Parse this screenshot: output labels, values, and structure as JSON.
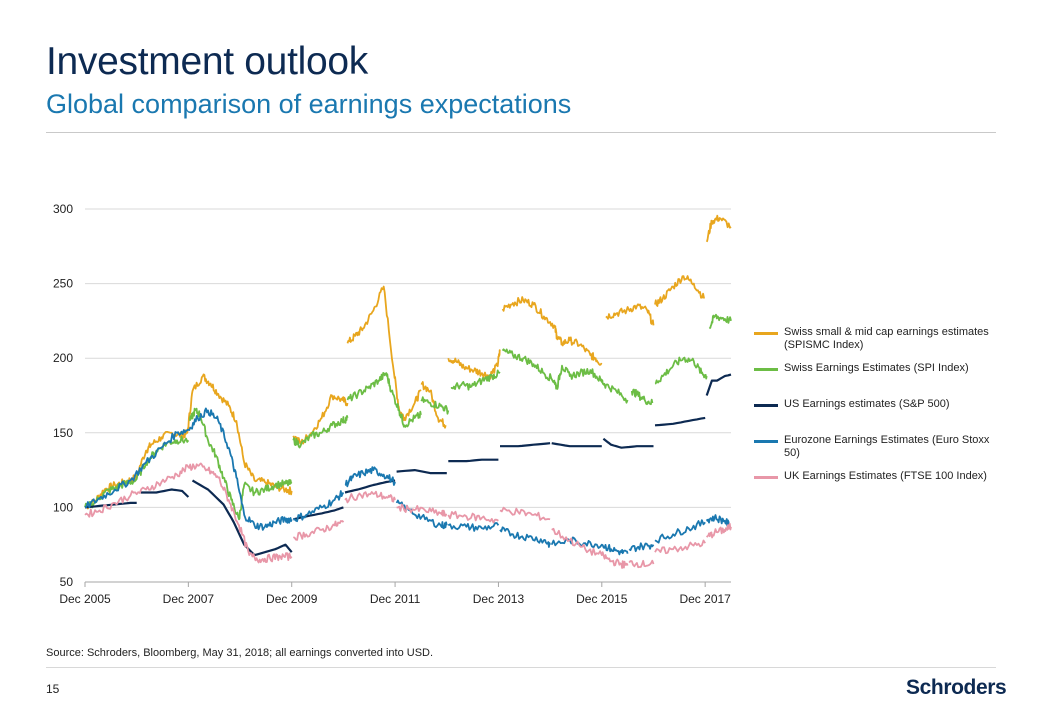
{
  "header": {
    "title": "Investment outlook",
    "subtitle": "Global comparison of earnings expectations"
  },
  "footer": {
    "source": "Source: Schroders, Bloomberg, May 31, 2018; all earnings converted into USD.",
    "page_number": "15",
    "brand": "Schroders"
  },
  "chart_data": {
    "type": "line",
    "title": "",
    "xlabel": "",
    "ylabel": "",
    "x_ticks": [
      "Dec 2005",
      "Dec 2007",
      "Dec 2009",
      "Dec 2011",
      "Dec 2013",
      "Dec 2015",
      "Dec 2017"
    ],
    "x_tick_values": [
      2005.92,
      2007.92,
      2009.92,
      2011.92,
      2013.92,
      2015.92,
      2017.92
    ],
    "xlim": [
      2005.92,
      2018.42
    ],
    "y_ticks": [
      "50",
      "100",
      "150",
      "200",
      "250",
      "300"
    ],
    "y_tick_values": [
      50,
      100,
      150,
      200,
      250,
      300
    ],
    "ylim": [
      50,
      300
    ],
    "grid": "horizontal",
    "legend_position": "right",
    "series": [
      {
        "name": "Swiss small & mid cap earnings estimates (SPISMC Index)",
        "color": "#e8a61e",
        "x": [
          2005.92,
          2006.1,
          2006.3,
          2006.5,
          2006.7,
          2006.9,
          2007.1,
          2007.2,
          2007.4,
          2007.6,
          2007.8,
          2007.9,
          2008.0,
          2008.2,
          2008.35,
          2008.5,
          2008.7,
          2008.85,
          2009.0,
          2009.2,
          2009.4,
          2009.6,
          2009.8,
          2009.92,
          null,
          2009.95,
          2010.1,
          2010.3,
          2010.5,
          2010.7,
          2010.9,
          2011.0,
          null,
          2011.0,
          2011.15,
          2011.3,
          2011.5,
          2011.7,
          2011.9,
          2012.0,
          2012.1,
          2012.3,
          2012.42,
          null,
          2012.42,
          2012.6,
          2012.75,
          2012.9,
          null,
          2012.95,
          2013.1,
          2013.25,
          2013.45,
          2013.6,
          2013.75,
          2013.9,
          2013.95,
          null,
          2014.0,
          2014.2,
          2014.4,
          2014.6,
          2014.8,
          2015.0,
          2015.05,
          2015.15,
          2015.3,
          2015.5,
          2015.7,
          2015.8,
          2015.92,
          null,
          2016.0,
          2016.2,
          2016.4,
          2016.6,
          2016.8,
          2016.92,
          null,
          2016.95,
          2017.1,
          2017.3,
          2017.5,
          2017.7,
          2017.9,
          null,
          2017.95,
          2018.05,
          2018.2,
          2018.42
        ],
        "values": [
          100,
          104,
          112,
          115,
          117,
          120,
          138,
          142,
          147,
          150,
          148,
          150,
          178,
          188,
          183,
          176,
          168,
          158,
          130,
          118,
          117,
          114,
          112,
          111,
          null,
          148,
          143,
          150,
          160,
          175,
          172,
          170,
          null,
          210,
          215,
          220,
          232,
          248,
          190,
          165,
          160,
          170,
          178,
          null,
          183,
          178,
          160,
          155,
          null,
          200,
          198,
          194,
          192,
          190,
          188,
          195,
          205,
          null,
          233,
          237,
          239,
          236,
          228,
          222,
          215,
          210,
          212,
          209,
          202,
          200,
          196,
          null,
          228,
          230,
          232,
          235,
          232,
          222,
          null,
          236,
          240,
          248,
          255,
          250,
          240,
          null,
          278,
          292,
          294,
          288
        ]
      },
      {
        "name": "Swiss Earnings Estimates (SPI Index)",
        "color": "#6cbd45",
        "x": [
          2005.92,
          2006.1,
          2006.3,
          2006.5,
          2006.7,
          2006.9,
          2007.1,
          2007.3,
          2007.5,
          2007.7,
          2007.92,
          null,
          2007.95,
          2008.05,
          2008.15,
          2008.3,
          2008.45,
          2008.6,
          2008.75,
          2008.9,
          2009.0,
          2009.2,
          2009.4,
          2009.6,
          2009.8,
          2009.92,
          null,
          2009.95,
          2010.1,
          2010.3,
          2010.5,
          2010.7,
          2010.9,
          2011.0,
          null,
          2011.0,
          2011.2,
          2011.4,
          2011.6,
          2011.75,
          2011.85,
          2012.0,
          2012.1,
          2012.3,
          2012.42,
          null,
          2012.42,
          2012.6,
          2012.8,
          2012.95,
          null,
          2013.0,
          2013.2,
          2013.4,
          2013.6,
          2013.8,
          2013.95,
          null,
          2014.0,
          2014.2,
          2014.4,
          2014.6,
          2014.8,
          2015.0,
          2015.05,
          2015.15,
          2015.3,
          2015.5,
          2015.7,
          2015.9,
          2016.0,
          2016.2,
          2016.42,
          null,
          2016.5,
          2016.6,
          2016.75,
          2016.9,
          null,
          2016.95,
          2017.1,
          2017.3,
          2017.5,
          2017.7,
          2017.85,
          2017.95,
          null,
          2018.0,
          2018.1,
          2018.25,
          2018.42
        ],
        "values": [
          100,
          103,
          110,
          113,
          116,
          118,
          130,
          138,
          143,
          145,
          145,
          null,
          158,
          165,
          162,
          145,
          135,
          120,
          105,
          92,
          115,
          110,
          112,
          115,
          116,
          116,
          null,
          145,
          142,
          148,
          150,
          155,
          158,
          160,
          null,
          172,
          176,
          180,
          185,
          190,
          178,
          165,
          155,
          160,
          162,
          null,
          172,
          170,
          168,
          165,
          null,
          180,
          182,
          181,
          185,
          188,
          190,
          null,
          205,
          202,
          200,
          196,
          190,
          185,
          180,
          195,
          188,
          190,
          192,
          185,
          182,
          178,
          172,
          null,
          178,
          176,
          172,
          170,
          null,
          183,
          188,
          195,
          200,
          198,
          190,
          188,
          null,
          220,
          228,
          227,
          225
        ]
      },
      {
        "name": "US Earnings estimates (S&P 500)",
        "color": "#0d2a52",
        "x": [
          2005.92,
          2006.2,
          2006.5,
          2006.8,
          2006.92,
          null,
          2007.0,
          2007.3,
          2007.6,
          2007.8,
          2007.92,
          null,
          2008.0,
          2008.3,
          2008.6,
          2008.8,
          2009.0,
          2009.2,
          2009.4,
          2009.6,
          2009.8,
          2009.92,
          null,
          2009.95,
          2010.2,
          2010.5,
          2010.75,
          2010.92,
          null,
          2010.95,
          2011.2,
          2011.5,
          2011.75,
          2011.92,
          null,
          2011.95,
          2012.3,
          2012.6,
          2012.92,
          null,
          2012.95,
          2013.3,
          2013.6,
          2013.92,
          null,
          2013.95,
          2014.3,
          2014.6,
          2014.92,
          null,
          2014.95,
          2015.3,
          2015.6,
          2015.92,
          null,
          2015.95,
          2016.1,
          2016.3,
          2016.6,
          2016.92,
          null,
          2016.95,
          2017.3,
          2017.6,
          2017.92,
          null,
          2017.95,
          2018.05,
          2018.15,
          2018.3,
          2018.42
        ],
        "values": [
          100,
          101,
          102,
          103,
          103,
          null,
          110,
          110,
          112,
          111,
          107,
          null,
          118,
          112,
          102,
          90,
          75,
          68,
          70,
          72,
          75,
          70,
          null,
          92,
          94,
          96,
          98,
          100,
          null,
          110,
          112,
          115,
          117,
          118,
          null,
          124,
          125,
          123,
          123,
          null,
          131,
          131,
          132,
          132,
          null,
          141,
          141,
          142,
          143,
          null,
          143,
          141,
          141,
          141,
          null,
          146,
          142,
          140,
          141,
          141,
          null,
          155,
          156,
          158,
          160,
          null,
          175,
          185,
          185,
          188,
          189
        ]
      },
      {
        "name": "Eurozone Earnings Estimates (Euro Stoxx 50)",
        "color": "#1a78b0",
        "x": [
          2005.92,
          2006.2,
          2006.5,
          2006.8,
          2007.1,
          2007.4,
          2007.7,
          2007.92,
          2008.1,
          2008.3,
          2008.5,
          2008.7,
          2008.85,
          2009.0,
          2009.2,
          2009.4,
          2009.6,
          2009.8,
          2009.92,
          null,
          2009.95,
          2010.2,
          2010.5,
          2010.75,
          2010.92,
          null,
          2010.95,
          2011.1,
          2011.3,
          2011.5,
          2011.7,
          2011.92,
          null,
          2011.95,
          2012.2,
          2012.5,
          2012.8,
          2012.92,
          null,
          2012.95,
          2013.3,
          2013.6,
          2013.92,
          null,
          2013.95,
          2014.2,
          2014.5,
          2014.8,
          2014.92,
          null,
          2014.95,
          2015.3,
          2015.6,
          2015.92,
          2016.1,
          2016.3,
          2016.42,
          null,
          2016.45,
          2016.7,
          2016.92,
          null,
          2016.95,
          2017.3,
          2017.6,
          2017.92,
          null,
          2017.95,
          2018.1,
          2018.3,
          2018.42
        ],
        "values": [
          100,
          106,
          112,
          118,
          130,
          140,
          150,
          152,
          160,
          165,
          158,
          140,
          120,
          95,
          88,
          87,
          90,
          92,
          92,
          null,
          92,
          95,
          100,
          105,
          110,
          null,
          115,
          120,
          123,
          125,
          122,
          117,
          null,
          103,
          98,
          92,
          88,
          88,
          null,
          88,
          87,
          86,
          88,
          null,
          85,
          82,
          80,
          78,
          75,
          null,
          75,
          78,
          76,
          75,
          72,
          70,
          69,
          null,
          72,
          74,
          75,
          null,
          78,
          82,
          86,
          90,
          null,
          92,
          93,
          91,
          87
        ]
      },
      {
        "name": "UK Earnings Estimates (FTSE 100 Index)",
        "color": "#e897a8",
        "x": [
          2005.92,
          2006.2,
          2006.5,
          2006.8,
          2007.1,
          2007.4,
          2007.7,
          2007.92,
          2008.1,
          2008.3,
          2008.5,
          2008.7,
          2008.9,
          2009.1,
          2009.3,
          2009.5,
          2009.7,
          2009.92,
          null,
          2009.95,
          2010.2,
          2010.5,
          2010.75,
          2010.92,
          null,
          2010.95,
          2011.2,
          2011.5,
          2011.75,
          2011.92,
          null,
          2011.95,
          2012.2,
          2012.5,
          2012.8,
          2012.92,
          null,
          2012.95,
          2013.3,
          2013.6,
          2013.92,
          null,
          2013.95,
          2014.3,
          2014.6,
          2014.92,
          null,
          2014.95,
          2015.3,
          2015.6,
          2015.92,
          2016.1,
          2016.3,
          2016.42,
          null,
          2016.45,
          2016.7,
          2016.92,
          null,
          2016.95,
          2017.3,
          2017.6,
          2017.92,
          null,
          2017.95,
          2018.1,
          2018.3,
          2018.42
        ],
        "values": [
          95,
          98,
          103,
          108,
          112,
          117,
          122,
          127,
          128,
          125,
          120,
          105,
          88,
          68,
          65,
          66,
          67,
          67,
          null,
          80,
          82,
          85,
          88,
          90,
          null,
          105,
          108,
          109,
          107,
          105,
          null,
          100,
          99,
          98,
          96,
          95,
          null,
          95,
          94,
          93,
          91,
          null,
          98,
          97,
          95,
          92,
          null,
          85,
          78,
          72,
          68,
          64,
          62,
          61,
          null,
          63,
          62,
          62,
          null,
          70,
          72,
          74,
          76,
          null,
          80,
          83,
          85,
          87
        ]
      }
    ]
  }
}
